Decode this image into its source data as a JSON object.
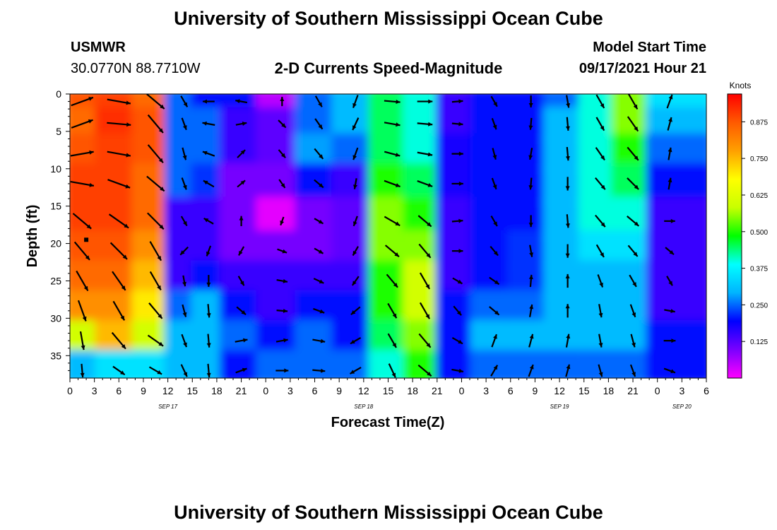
{
  "header": {
    "title": "University of Southern Mississippi Ocean Cube",
    "station_name": "USMWR",
    "station_coords": "30.0770N  88.7710W",
    "product": "2-D Currents Speed-Magnitude",
    "model_start_label": "Model Start Time",
    "model_start_value": "09/17/2021 Hour 21"
  },
  "footer": {
    "title": "University of Southern Mississippi Ocean Cube"
  },
  "colors": {
    "scale": [
      "#ff00ff",
      "#7a00ff",
      "#0000ff",
      "#00b4ff",
      "#00ffff",
      "#00ff00",
      "#c8ff00",
      "#ffff00",
      "#ffa000",
      "#ff5a00",
      "#ff0000"
    ],
    "arrow": "#000000"
  },
  "chart_data": {
    "type": "heatmap",
    "xlabel": "Forecast Time(Z)",
    "ylabel": "Depth (ft)",
    "x_ticks": [
      "0",
      "3",
      "6",
      "9",
      "12",
      "15",
      "18",
      "21",
      "0",
      "3",
      "6",
      "9",
      "12",
      "15",
      "18",
      "21",
      "0",
      "3",
      "6",
      "9",
      "12",
      "15",
      "18",
      "21",
      "0",
      "3",
      "6"
    ],
    "x_range_hours": [
      0,
      78
    ],
    "date_labels": [
      {
        "text": "SEP 17",
        "hour": 12
      },
      {
        "text": "SEP 18",
        "hour": 36
      },
      {
        "text": "SEP 19",
        "hour": 60
      },
      {
        "text": "SEP 20",
        "hour": 75
      }
    ],
    "y_ticks": [
      0,
      5,
      10,
      15,
      20,
      25,
      30,
      35
    ],
    "ylim": [
      0,
      38
    ],
    "y_inverted": true,
    "colorbar": {
      "units": "Knots",
      "ticks": [
        "0.875",
        "0.750",
        "0.625",
        "0.500",
        "0.375",
        "0.250",
        "0.125"
      ],
      "tick_values": [
        0.875,
        0.75,
        0.625,
        0.5,
        0.375,
        0.25,
        0.125
      ],
      "range": [
        0,
        0.97
      ]
    },
    "vector_depths": [
      1,
      4,
      8,
      12,
      17,
      21,
      25,
      29,
      33,
      37
    ],
    "vector_columns": [
      {
        "hour": 1.5,
        "speeds": [
          0.88,
          0.85,
          0.88,
          0.9,
          0.9,
          0.88,
          0.85,
          0.8,
          0.6,
          0.3
        ],
        "dirs": [
          70,
          70,
          80,
          100,
          130,
          140,
          150,
          160,
          170,
          175
        ]
      },
      {
        "hour": 6,
        "speeds": [
          0.9,
          0.92,
          0.9,
          0.9,
          0.9,
          0.88,
          0.85,
          0.8,
          0.75,
          0.35
        ],
        "dirs": [
          100,
          95,
          100,
          110,
          125,
          135,
          145,
          150,
          140,
          125
        ]
      },
      {
        "hour": 10.5,
        "speeds": [
          0.85,
          0.88,
          0.88,
          0.85,
          0.85,
          0.8,
          0.75,
          0.7,
          0.6,
          0.35
        ],
        "dirs": [
          130,
          140,
          140,
          130,
          135,
          150,
          150,
          140,
          125,
          120
        ]
      },
      {
        "hour": 14,
        "speeds": [
          0.25,
          0.25,
          0.25,
          0.25,
          0.15,
          0.15,
          0.15,
          0.25,
          0.3,
          0.3
        ],
        "dirs": [
          150,
          160,
          165,
          160,
          150,
          225,
          170,
          165,
          160,
          155
        ]
      },
      {
        "hour": 17,
        "speeds": [
          0.2,
          0.25,
          0.25,
          0.22,
          0.15,
          0.15,
          0.2,
          0.3,
          0.3,
          0.3
        ],
        "dirs": [
          270,
          280,
          290,
          300,
          300,
          200,
          180,
          175,
          175,
          175
        ]
      },
      {
        "hour": 21,
        "speeds": [
          0.2,
          0.15,
          0.15,
          0.1,
          0.1,
          0.1,
          0.15,
          0.2,
          0.25,
          0.2
        ],
        "dirs": [
          280,
          80,
          45,
          50,
          0,
          210,
          150,
          130,
          80,
          70
        ]
      },
      {
        "hour": 26,
        "speeds": [
          0.05,
          0.12,
          0.12,
          0.1,
          0.02,
          0.1,
          0.15,
          0.15,
          0.2,
          0.25
        ],
        "dirs": [
          0,
          135,
          140,
          145,
          200,
          110,
          100,
          95,
          80,
          90
        ]
      },
      {
        "hour": 30.5,
        "speeds": [
          0.25,
          0.25,
          0.28,
          0.2,
          0.1,
          0.1,
          0.15,
          0.2,
          0.25,
          0.25
        ],
        "dirs": [
          150,
          145,
          140,
          130,
          120,
          120,
          115,
          110,
          100,
          95
        ]
      },
      {
        "hour": 35,
        "speeds": [
          0.3,
          0.3,
          0.25,
          0.15,
          0.12,
          0.12,
          0.15,
          0.2,
          0.2,
          0.25
        ],
        "dirs": [
          200,
          205,
          200,
          190,
          200,
          210,
          215,
          230,
          240,
          240
        ]
      },
      {
        "hour": 39.5,
        "speeds": [
          0.45,
          0.45,
          0.45,
          0.5,
          0.55,
          0.55,
          0.5,
          0.5,
          0.45,
          0.4
        ],
        "dirs": [
          95,
          100,
          105,
          110,
          120,
          130,
          140,
          150,
          150,
          155
        ]
      },
      {
        "hour": 43.5,
        "speeds": [
          0.4,
          0.4,
          0.4,
          0.45,
          0.5,
          0.55,
          0.6,
          0.6,
          0.55,
          0.5
        ],
        "dirs": [
          90,
          95,
          100,
          110,
          130,
          140,
          150,
          150,
          140,
          130
        ]
      },
      {
        "hour": 47.5,
        "speeds": [
          0.15,
          0.15,
          0.18,
          0.18,
          0.15,
          0.15,
          0.15,
          0.2,
          0.2,
          0.2
        ],
        "dirs": [
          85,
          95,
          90,
          90,
          85,
          90,
          120,
          140,
          120,
          100
        ]
      },
      {
        "hour": 52,
        "speeds": [
          0.2,
          0.2,
          0.2,
          0.2,
          0.2,
          0.2,
          0.2,
          0.25,
          0.3,
          0.25
        ],
        "dirs": [
          150,
          160,
          165,
          160,
          150,
          140,
          125,
          130,
          20,
          30
        ]
      },
      {
        "hour": 56.5,
        "speeds": [
          0.2,
          0.2,
          0.2,
          0.2,
          0.2,
          0.22,
          0.22,
          0.25,
          0.3,
          0.25
        ],
        "dirs": [
          180,
          185,
          190,
          185,
          180,
          170,
          5,
          10,
          15,
          20
        ]
      },
      {
        "hour": 61,
        "speeds": [
          0.25,
          0.3,
          0.3,
          0.3,
          0.3,
          0.3,
          0.3,
          0.3,
          0.3,
          0.25
        ],
        "dirs": [
          170,
          175,
          175,
          180,
          175,
          180,
          0,
          0,
          10,
          15
        ]
      },
      {
        "hour": 65,
        "speeds": [
          0.4,
          0.4,
          0.4,
          0.4,
          0.4,
          0.35,
          0.3,
          0.3,
          0.3,
          0.25
        ],
        "dirs": [
          150,
          150,
          145,
          140,
          140,
          150,
          160,
          170,
          170,
          165
        ]
      },
      {
        "hour": 69,
        "speeds": [
          0.55,
          0.55,
          0.5,
          0.45,
          0.4,
          0.35,
          0.3,
          0.3,
          0.3,
          0.25
        ],
        "dirs": [
          150,
          145,
          140,
          135,
          130,
          140,
          150,
          160,
          165,
          160
        ]
      },
      {
        "hour": 73.5,
        "speeds": [
          0.35,
          0.3,
          0.25,
          0.2,
          0.15,
          0.15,
          0.15,
          0.15,
          0.2,
          0.2
        ],
        "dirs": [
          20,
          15,
          10,
          10,
          90,
          130,
          150,
          100,
          90,
          110
        ]
      }
    ],
    "arrow_marker": {
      "hour": 2.0,
      "depth": 19.5
    }
  }
}
